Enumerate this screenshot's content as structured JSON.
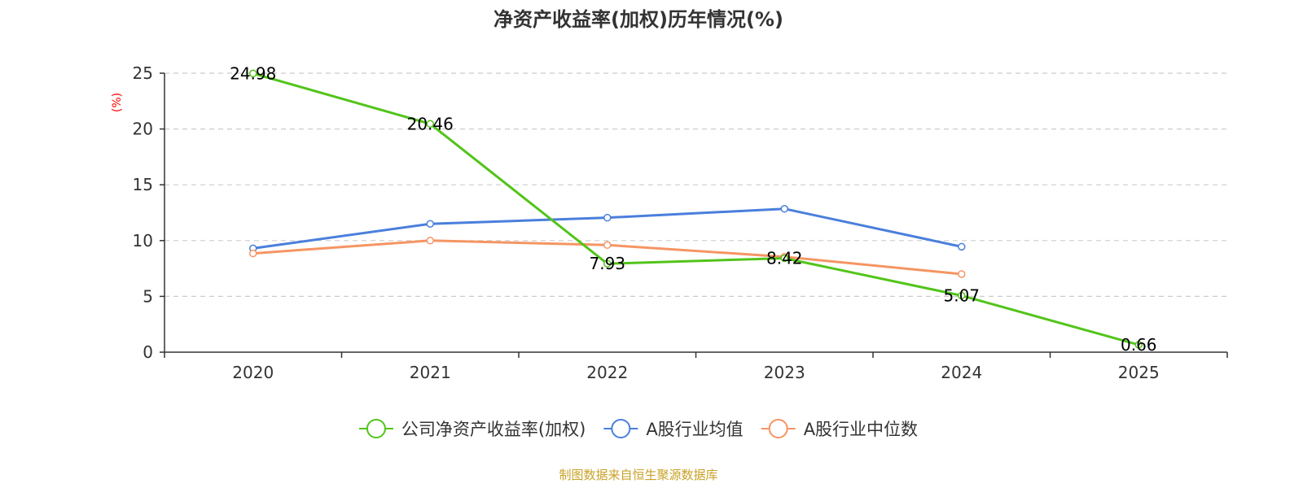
{
  "chart_data": {
    "type": "line",
    "title": "净资产收益率(加权)历年情况(%)",
    "ylabel": "(%)",
    "xlabel": "",
    "categories": [
      "2020",
      "2021",
      "2022",
      "2023",
      "2024",
      "2025"
    ],
    "ylim": [
      0,
      25
    ],
    "yticks": [
      0,
      5,
      10,
      15,
      20,
      25
    ],
    "grid": true,
    "legend_position": "bottom-center",
    "series": [
      {
        "name": "公司净资产收益率(加权)",
        "color": "#52c41a",
        "show_labels": true,
        "labels": [
          "24.98",
          "20.46",
          "7.93",
          "8.42",
          "5.07",
          "0.66"
        ],
        "values": [
          24.98,
          20.46,
          7.93,
          8.42,
          5.07,
          0.66
        ]
      },
      {
        "name": "A股行业均值",
        "color": "#4a7fdc",
        "show_labels": false,
        "values": [
          9.3,
          11.5,
          12.05,
          12.85,
          9.45,
          null
        ]
      },
      {
        "name": "A股行业中位数",
        "color": "#f59563",
        "show_labels": false,
        "values": [
          8.85,
          10.0,
          9.6,
          8.55,
          7.0,
          null
        ]
      }
    ],
    "ylabel_color": "#ff0000"
  },
  "source": {
    "text": "制图数据来自恒生聚源数据库",
    "color": "#c9a227"
  }
}
